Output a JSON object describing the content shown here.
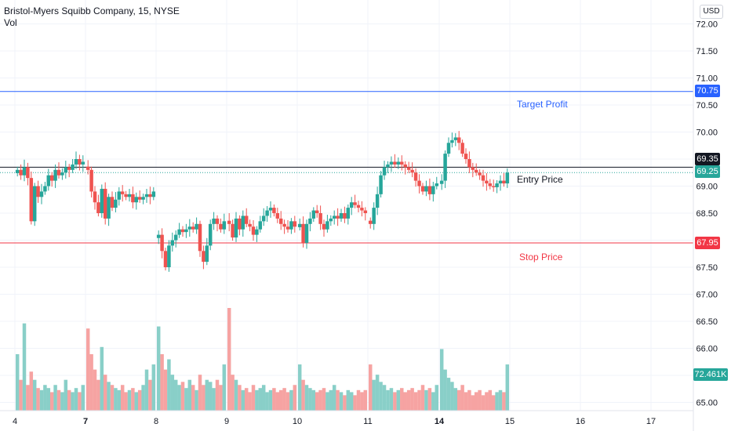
{
  "legend": {
    "symbol": "Bristol-Myers Squibb Company, 15, NYSE",
    "volume_label": "Vol"
  },
  "currency_button": "USD",
  "colors": {
    "up": "#26a69a",
    "down": "#ef5350",
    "up_volume": "#89cfc8",
    "down_volume": "#f6a3a2",
    "target_line": "#2962ff",
    "stop_line": "#f23645",
    "entry_line": "#131722",
    "last_price": "#26a69a"
  },
  "chart_data": {
    "type": "candlestick",
    "x_ticks": [
      "4",
      "7",
      "8",
      "9",
      "10",
      "11",
      "14",
      "15",
      "16",
      "17"
    ],
    "bold_x_ticks": [
      "7",
      "14"
    ],
    "y_ticks": [
      "72.00",
      "71.50",
      "71.00",
      "70.50",
      "70.00",
      "69.50",
      "69.00",
      "68.50",
      "68.00",
      "67.50",
      "67.00",
      "66.50",
      "66.00",
      "65.50",
      "65.00"
    ],
    "y_range": [
      64.95,
      72.25
    ],
    "grid": true,
    "price_lines": [
      {
        "name": "target",
        "price": 70.75,
        "label": "70.75",
        "annotation": "Target Profit"
      },
      {
        "name": "entry",
        "price": 69.35,
        "label": "69.35",
        "annotation": "Entry Price"
      },
      {
        "name": "stop",
        "price": 67.95,
        "label": "67.95",
        "annotation": "Stop Price"
      }
    ],
    "last_price": {
      "price": 69.25,
      "label": "69.25"
    },
    "volume_label": "72.461K",
    "sessions": [
      {
        "day": "4",
        "points": [
          69.3,
          69.2,
          69.35,
          69.15,
          68.35,
          69.0,
          68.8,
          68.9,
          69.0,
          69.2,
          69.1,
          69.3,
          69.2,
          69.25,
          69.35,
          69.3,
          69.4,
          69.5,
          69.4,
          69.45
        ]
      },
      {
        "day": "7",
        "points": [
          69.3,
          68.9,
          68.7,
          68.5,
          68.95,
          68.4,
          68.8,
          68.6,
          68.75,
          68.9,
          68.85,
          68.8,
          68.85,
          68.7,
          68.8,
          68.75,
          68.8,
          68.85,
          68.8,
          68.9
        ]
      },
      {
        "day": "8",
        "points": [
          68.1,
          67.8,
          67.5,
          67.9,
          68.0,
          68.1,
          68.2,
          68.15,
          68.2,
          68.25,
          68.2,
          68.3,
          67.8,
          67.6,
          67.9,
          68.3,
          68.4,
          68.3,
          68.2,
          68.35
        ]
      },
      {
        "day": "9",
        "points": [
          68.3,
          68.05,
          68.4,
          68.2,
          68.45,
          68.3,
          68.25,
          68.1,
          68.2,
          68.35,
          68.45,
          68.55,
          68.6,
          68.5,
          68.4,
          68.3,
          68.25,
          68.2,
          68.35,
          68.25
        ]
      },
      {
        "day": "10",
        "points": [
          68.3,
          67.95,
          68.3,
          68.4,
          68.55,
          68.5,
          68.3,
          68.2,
          68.35,
          68.4,
          68.45,
          68.4,
          68.5,
          68.4,
          68.6,
          68.7,
          68.65,
          68.6,
          68.55,
          68.5
        ]
      },
      {
        "day": "11",
        "points": [
          68.3,
          68.6,
          68.85,
          69.2,
          69.35,
          69.4,
          69.45,
          69.4,
          69.45,
          69.4,
          69.35,
          69.3,
          69.25,
          69.1,
          69.0,
          68.9,
          69.0,
          68.85,
          69.0,
          69.05
        ]
      },
      {
        "day": "14",
        "points": [
          69.1,
          69.6,
          69.8,
          69.85,
          69.9,
          69.8,
          69.6,
          69.5,
          69.35,
          69.3,
          69.25,
          69.2,
          69.1,
          69.05,
          69.0,
          68.98,
          69.05,
          69.1,
          69.05,
          69.25
        ]
      }
    ],
    "volumes": [
      [
        0.55,
        0.3,
        0.85,
        0.25,
        0.38,
        0.3,
        0.22,
        0.2,
        0.25,
        0.22,
        0.18,
        0.25,
        0.2,
        0.18,
        0.3,
        0.2,
        0.18,
        0.22,
        0.18,
        0.25
      ],
      [
        0.8,
        0.55,
        0.4,
        0.3,
        0.62,
        0.35,
        0.28,
        0.25,
        0.22,
        0.2,
        0.25,
        0.18,
        0.2,
        0.22,
        0.18,
        0.2,
        0.25,
        0.4,
        0.3,
        0.45
      ],
      [
        0.82,
        0.55,
        0.4,
        0.5,
        0.35,
        0.3,
        0.25,
        0.28,
        0.22,
        0.3,
        0.25,
        0.2,
        0.35,
        0.25,
        0.3,
        0.28,
        0.22,
        0.3,
        0.25,
        0.45
      ],
      [
        1.0,
        0.35,
        0.3,
        0.25,
        0.2,
        0.22,
        0.18,
        0.25,
        0.2,
        0.22,
        0.25,
        0.18,
        0.2,
        0.22,
        0.18,
        0.2,
        0.22,
        0.18,
        0.2,
        0.25
      ],
      [
        0.45,
        0.3,
        0.25,
        0.22,
        0.2,
        0.18,
        0.2,
        0.22,
        0.18,
        0.2,
        0.25,
        0.2,
        0.18,
        0.15,
        0.2,
        0.18,
        0.15,
        0.2,
        0.18,
        0.2
      ],
      [
        0.45,
        0.3,
        0.35,
        0.28,
        0.25,
        0.2,
        0.22,
        0.18,
        0.2,
        0.22,
        0.18,
        0.2,
        0.22,
        0.18,
        0.2,
        0.25,
        0.2,
        0.22,
        0.18,
        0.25
      ],
      [
        0.6,
        0.4,
        0.32,
        0.28,
        0.22,
        0.2,
        0.25,
        0.18,
        0.2,
        0.15,
        0.18,
        0.2,
        0.15,
        0.18,
        0.2,
        0.15,
        0.18,
        0.2,
        0.18,
        0.45
      ]
    ]
  }
}
